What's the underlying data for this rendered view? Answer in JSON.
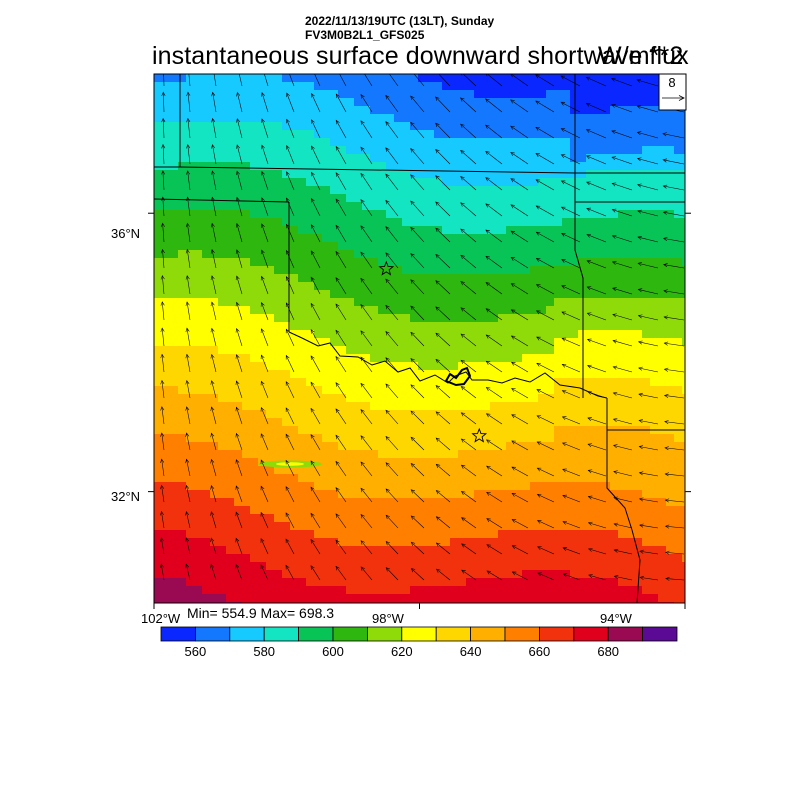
{
  "header": {
    "datetime": "2022/11/13/19UTC (13LT), Sunday",
    "model": "FV3M0B2L1_GFS025"
  },
  "title": {
    "main": "instantaneous surface downward shortwave flux",
    "units": "W/m**2"
  },
  "vector_legend": {
    "value": "8"
  },
  "axes": {
    "lat_labels": [
      {
        "text": "36°N",
        "value": 36
      },
      {
        "text": "32°N",
        "value": 32
      }
    ],
    "lon_labels": [
      {
        "text": "102°W",
        "value": -102
      },
      {
        "text": "98°W",
        "value": -98
      },
      {
        "text": "94°W",
        "value": -94
      }
    ],
    "lon_range": [
      -102,
      -94
    ],
    "lat_range": [
      30.4,
      38.0
    ]
  },
  "stats": {
    "text": "Min= 554.9 Max= 698.3",
    "min": 554.9,
    "max": 698.3
  },
  "colorbar": {
    "colors": [
      "#0b27ff",
      "#1478ff",
      "#16c9ff",
      "#13e4c2",
      "#08c457",
      "#2eb70f",
      "#8fdb0a",
      "#ffff00",
      "#ffd700",
      "#ffaf00",
      "#ff7f00",
      "#f2310d",
      "#e0001e",
      "#9a0a52",
      "#5b0a96"
    ],
    "labels": [
      "560",
      "580",
      "600",
      "620",
      "640",
      "660",
      "680"
    ]
  },
  "markers": [
    {
      "name": "star",
      "lon": -98.5,
      "lat": 35.2
    },
    {
      "name": "star",
      "lon": -97.1,
      "lat": 32.8
    }
  ]
}
